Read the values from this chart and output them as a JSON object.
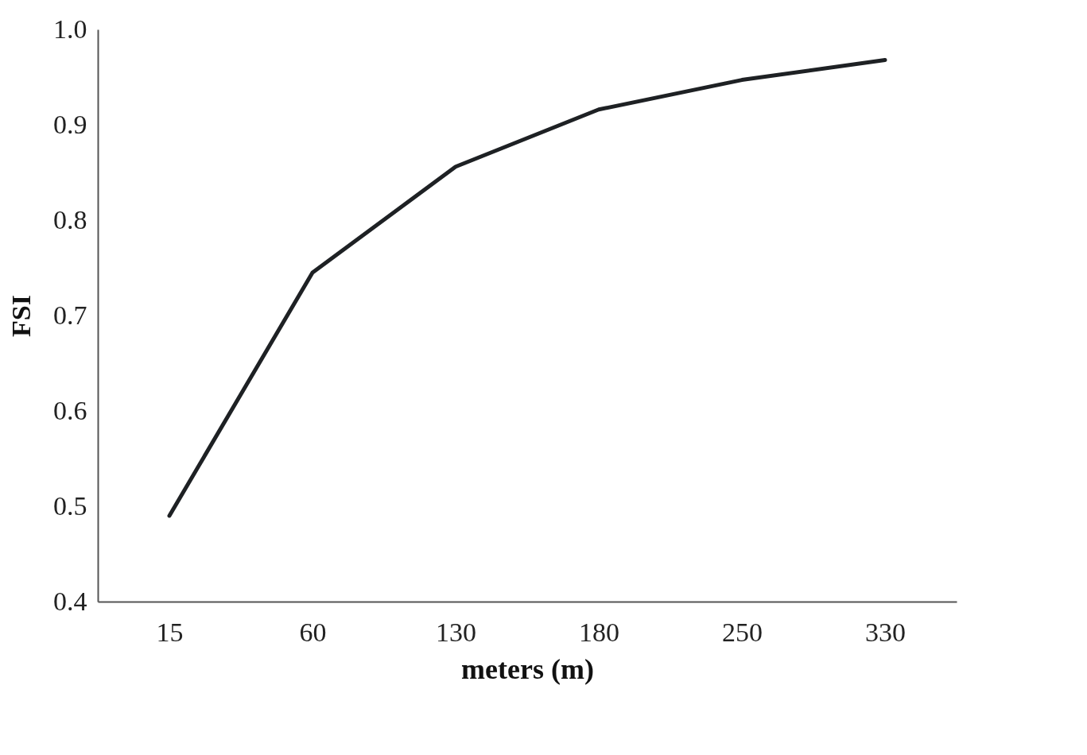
{
  "chart_data": {
    "type": "line",
    "xlabel": "meters (m)",
    "ylabel": "FSI",
    "categories": [
      "15",
      "60",
      "130",
      "180",
      "250",
      "330"
    ],
    "series": [
      {
        "color": "#1e2124",
        "values": [
          0.49,
          0.745,
          0.856,
          0.916,
          0.947,
          0.968
        ]
      }
    ],
    "ylim": [
      0.4,
      1.0
    ],
    "yticks": [
      {
        "value": 0.4,
        "label": "0.4"
      },
      {
        "value": 0.5,
        "label": "0.5"
      },
      {
        "value": 0.6,
        "label": "0.6"
      },
      {
        "value": 0.7,
        "label": "0.7"
      },
      {
        "value": 0.8,
        "label": "0.8"
      },
      {
        "value": 0.9,
        "label": "0.9"
      },
      {
        "value": 1.0,
        "label": "1.0"
      }
    ],
    "grid": false,
    "marker": "none",
    "line_style": "solid"
  }
}
